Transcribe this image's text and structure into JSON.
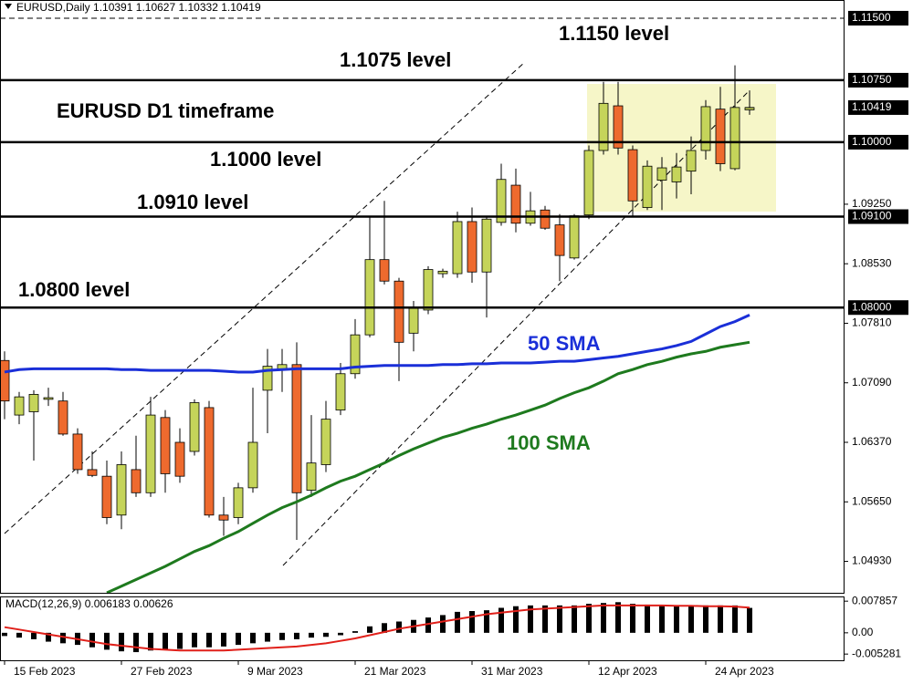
{
  "chart_data": [
    {
      "type": "candlestick",
      "title": "EURUSD,Daily",
      "categories": [
        "15 Feb 2023",
        null,
        null,
        null,
        null,
        null,
        null,
        null,
        "27 Feb 2023",
        null,
        null,
        null,
        null,
        null,
        null,
        null,
        "9 Mar 2023",
        null,
        null,
        null,
        null,
        null,
        null,
        null,
        "21 Mar 2023",
        null,
        null,
        null,
        null,
        null,
        null,
        null,
        "31 Mar 2023",
        null,
        null,
        null,
        null,
        null,
        null,
        null,
        "12 Apr 2023",
        null,
        null,
        null,
        null,
        null,
        null,
        null,
        "24 Apr 2023",
        null,
        null,
        null
      ],
      "open": [
        1.0736,
        1.067,
        1.0674,
        1.0689,
        1.0687,
        1.0647,
        1.0604,
        1.0596,
        1.0549,
        1.0604,
        1.0576,
        1.0667,
        1.0637,
        1.0626,
        1.0679,
        1.0549,
        1.0546,
        1.0582,
        1.07,
        1.0725,
        1.0731,
        1.0579,
        1.061,
        1.0676,
        1.072,
        1.0767,
        1.0858,
        1.0832,
        1.0769,
        1.0797,
        1.0841,
        1.0841,
        1.0904,
        1.0843,
        1.0903,
        1.0948,
        1.0902,
        1.0918,
        1.09,
        1.086,
        1.0912,
        1.099,
        1.1044,
        1.0991,
        1.0921,
        1.0954,
        1.0952,
        1.0965,
        1.099,
        1.104,
        1.0968,
        1.10391
      ],
      "high": [
        1.0747,
        1.0698,
        1.07,
        1.0703,
        1.0698,
        1.0654,
        1.0626,
        1.0615,
        1.0626,
        1.0645,
        1.0692,
        1.0676,
        1.0654,
        1.0689,
        1.0687,
        1.0571,
        1.0588,
        1.0703,
        1.075,
        1.075,
        1.0758,
        1.067,
        1.0687,
        1.0733,
        1.0786,
        1.091,
        1.0929,
        1.0836,
        1.0808,
        1.085,
        1.0847,
        1.0916,
        1.0921,
        1.091,
        1.0974,
        1.0968,
        1.094,
        1.0923,
        1.0913,
        1.0913,
        1.0996,
        1.1073,
        1.1073,
        1.0996,
        1.0978,
        1.0982,
        1.0987,
        1.1007,
        1.1051,
        1.1067,
        1.1093,
        1.10627
      ],
      "low": [
        1.0665,
        1.0659,
        1.0615,
        1.0681,
        1.0645,
        1.0599,
        1.0595,
        1.0538,
        1.0532,
        1.0571,
        1.0571,
        1.0576,
        1.0588,
        1.0621,
        1.0546,
        1.0524,
        1.0538,
        1.0576,
        1.0648,
        1.0698,
        1.0519,
        1.0571,
        1.0601,
        1.067,
        1.0714,
        1.0764,
        1.0828,
        1.0711,
        1.0747,
        1.0792,
        1.0836,
        1.0836,
        1.083,
        1.0788,
        1.0899,
        1.0891,
        1.0899,
        1.0894,
        1.0832,
        1.0858,
        1.0907,
        1.0985,
        1.0985,
        1.091,
        1.0918,
        1.0918,
        1.0932,
        1.0937,
        1.0979,
        1.0965,
        1.0966,
        1.10332
      ],
      "close": [
        1.0687,
        1.0692,
        1.0695,
        1.0691,
        1.0647,
        1.0604,
        1.0597,
        1.0546,
        1.061,
        1.0576,
        1.067,
        1.0599,
        1.0596,
        1.0685,
        1.0549,
        1.0543,
        1.0582,
        1.0637,
        1.0729,
        1.0731,
        1.0576,
        1.0612,
        1.0665,
        1.072,
        1.0767,
        1.0858,
        1.0832,
        1.0758,
        1.0799,
        1.0846,
        1.0844,
        1.0904,
        1.0843,
        1.0907,
        1.0955,
        1.0902,
        1.0917,
        1.0896,
        1.0863,
        1.0911,
        1.099,
        1.1047,
        1.0993,
        1.0929,
        1.0971,
        1.0969,
        1.097,
        1.099,
        1.1043,
        1.0974,
        1.1042,
        1.10419
      ],
      "up_color": "#c5d45a",
      "down_color": "#ee6a2e",
      "overlays": [
        {
          "name": "50 SMA",
          "color": "#1a2fd8",
          "values": [
            1.0722,
            1.0725,
            1.0726,
            1.0726,
            1.0726,
            1.0726,
            1.0726,
            1.0726,
            1.0725,
            1.0725,
            1.0724,
            1.0724,
            1.0724,
            1.0724,
            1.0724,
            1.0723,
            1.0722,
            1.0722,
            1.0724,
            1.0725,
            1.0726,
            1.0726,
            1.0726,
            1.0726,
            1.0728,
            1.0729,
            1.073,
            1.073,
            1.073,
            1.073,
            1.0731,
            1.0731,
            1.0732,
            1.0732,
            1.0733,
            1.0733,
            1.0733,
            1.0734,
            1.0735,
            1.0735,
            1.0737,
            1.0739,
            1.0741,
            1.0744,
            1.0747,
            1.075,
            1.0754,
            1.0759,
            1.0768,
            1.0777,
            1.0783,
            1.0791
          ]
        },
        {
          "name": "100 SMA",
          "color": "#1e7a1e",
          "values": [
            null,
            null,
            null,
            null,
            null,
            null,
            null,
            1.0455,
            1.0463,
            1.0471,
            1.0479,
            1.0487,
            1.0496,
            1.0505,
            1.0512,
            1.0521,
            1.0529,
            1.0539,
            1.0549,
            1.0558,
            1.0565,
            1.0573,
            1.0582,
            1.059,
            1.0596,
            1.0604,
            1.0612,
            1.0621,
            1.0629,
            1.0636,
            1.0643,
            1.0648,
            1.0654,
            1.0659,
            1.0665,
            1.067,
            1.0676,
            1.0682,
            1.069,
            1.0697,
            1.0703,
            1.0711,
            1.072,
            1.0725,
            1.0731,
            1.0735,
            1.074,
            1.0744,
            1.0747,
            1.0752,
            1.0755,
            1.0758
          ]
        }
      ],
      "ylim": [
        1.0455,
        1.1172
      ],
      "yticks": [
        {
          "value": 1.0493,
          "label": "1.04930"
        },
        {
          "value": 1.0565,
          "label": "1.05650"
        },
        {
          "value": 1.0637,
          "label": "1.06370"
        },
        {
          "value": 1.0709,
          "label": "1.07090"
        },
        {
          "value": 1.0781,
          "label": "1.07810"
        },
        {
          "value": 1.0853,
          "label": "1.08530"
        },
        {
          "value": 1.0925,
          "label": "1.09250"
        }
      ],
      "levels": [
        {
          "value": 1.115,
          "label": "1.11500",
          "text": "1.1150 level",
          "dashed": true
        },
        {
          "value": 1.1075,
          "label": "1.10750",
          "text": "1.1075 level",
          "dashed": false
        },
        {
          "value": 1.1,
          "label": "1.10000",
          "text": "1.1000 level",
          "dashed": false
        },
        {
          "value": 1.091,
          "label": "1.09100",
          "text": "1.0910 level",
          "dashed": false
        },
        {
          "value": 1.08,
          "label": "1.08000",
          "text": "1.0800 level",
          "dashed": false
        }
      ],
      "price_tag": {
        "value": 1.10419,
        "label": "1.10419"
      },
      "annotation": "EURUSD D1 timeframe"
    },
    {
      "type": "macd",
      "title": "MACD(12,26,9)",
      "histogram": {
        "color": "#000000",
        "values": [
          -0.0008,
          -0.0012,
          -0.0016,
          -0.0022,
          -0.0026,
          -0.003,
          -0.0036,
          -0.0042,
          -0.0046,
          -0.0048,
          -0.0044,
          -0.0042,
          -0.004,
          -0.0036,
          -0.0036,
          -0.0034,
          -0.003,
          -0.0026,
          -0.0022,
          -0.0018,
          -0.0016,
          -0.0012,
          -0.001,
          -0.0006,
          0.0004,
          0.0016,
          0.0024,
          0.0028,
          0.0032,
          0.0038,
          0.0044,
          0.0052,
          0.0054,
          0.0056,
          0.0062,
          0.0066,
          0.0068,
          0.0068,
          0.0068,
          0.0068,
          0.0072,
          0.0074,
          0.0076,
          0.0072,
          0.007,
          0.0068,
          0.0068,
          0.0068,
          0.0068,
          0.0068,
          0.0068,
          0.006183
        ]
      },
      "signal": {
        "color": "#e0201a",
        "values": [
          0.0014,
          0.0008,
          0.0002,
          -0.0004,
          -0.001,
          -0.0016,
          -0.0022,
          -0.0028,
          -0.0032,
          -0.0036,
          -0.004,
          -0.0042,
          -0.0044,
          -0.0044,
          -0.0044,
          -0.0044,
          -0.0042,
          -0.004,
          -0.0038,
          -0.0036,
          -0.0034,
          -0.003,
          -0.0026,
          -0.002,
          -0.0014,
          -0.0006,
          0.0002,
          0.001,
          0.0016,
          0.0022,
          0.0028,
          0.0034,
          0.004,
          0.0046,
          0.005,
          0.0054,
          0.0058,
          0.006,
          0.0062,
          0.0064,
          0.0066,
          0.0068,
          0.0068,
          0.0068,
          0.0068,
          0.0068,
          0.0067,
          0.0067,
          0.0066,
          0.0066,
          0.0065,
          0.00626
        ]
      },
      "ylim": [
        -0.0066,
        0.0088
      ],
      "yticks": [
        {
          "value": 0.007857,
          "label": "0.007857"
        },
        {
          "value": 0,
          "label": "0.00"
        },
        {
          "value": -0.005281,
          "label": "-0.005281"
        }
      ]
    }
  ]
}
